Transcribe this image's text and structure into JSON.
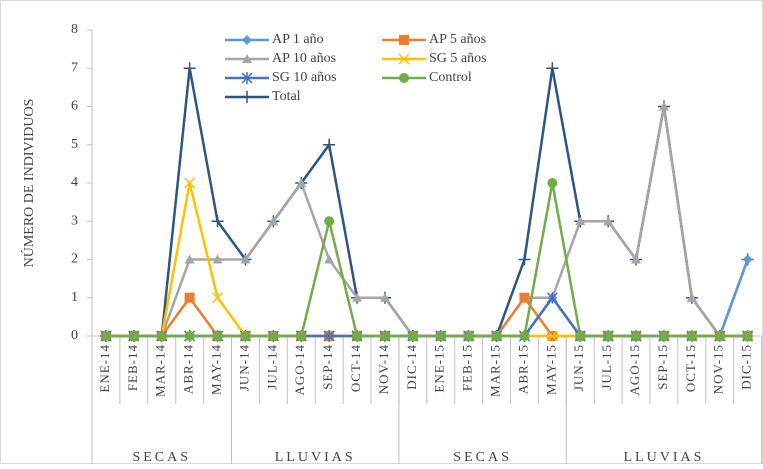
{
  "chart_data": {
    "type": "line",
    "y_label": "NÚMERO DE INDIVIDUOS",
    "categories": [
      "ENE-14",
      "FEB-14",
      "MAR-14",
      "ABR-14",
      "MAY-14",
      "JUN-14",
      "JUL-14",
      "AGO-14",
      "SEP-14",
      "OCT-14",
      "NOV-14",
      "DIC-14",
      "ENE-15",
      "FEB-15",
      "MAR-15",
      "ABR-15",
      "MAY-15",
      "JUN-15",
      "JUL-15",
      "AGO-15",
      "SEP-15",
      "OCT-15",
      "NOV-15",
      "DIC-15"
    ],
    "groups": [
      {
        "label": "SECAS",
        "count": 5
      },
      {
        "label": "LLUVIAS",
        "count": 6
      },
      {
        "label": "SECAS",
        "count": 6
      },
      {
        "label": "LLUVIAS",
        "count": 7
      }
    ],
    "series": [
      {
        "name": "Total",
        "color": "#2a5585",
        "marker": "plus",
        "values": [
          0,
          0,
          0,
          7,
          3,
          2,
          3,
          4,
          5,
          1,
          1,
          0,
          0,
          0,
          0,
          2,
          7,
          3,
          3,
          2,
          6,
          1,
          0,
          2
        ]
      },
      {
        "name": "AP 10 años",
        "color": "#a5a5a5",
        "marker": "triangle",
        "values": [
          0,
          0,
          0,
          2,
          2,
          2,
          3,
          4,
          2,
          1,
          1,
          0,
          0,
          0,
          0,
          1,
          1,
          3,
          3,
          2,
          6,
          1,
          0,
          0
        ]
      },
      {
        "name": "AP 1 año",
        "color": "#5b9bd5",
        "marker": "diamond",
        "values": [
          0,
          0,
          0,
          0,
          0,
          0,
          0,
          0,
          0,
          0,
          0,
          0,
          0,
          0,
          0,
          0,
          1,
          0,
          0,
          0,
          0,
          0,
          0,
          2
        ]
      },
      {
        "name": "AP 5 años",
        "color": "#ed7d31",
        "marker": "square",
        "values": [
          0,
          0,
          0,
          1,
          0,
          0,
          0,
          0,
          0,
          0,
          0,
          0,
          0,
          0,
          0,
          1,
          0,
          0,
          0,
          0,
          0,
          0,
          0,
          0
        ]
      },
      {
        "name": "SG 5 años",
        "color": "#ffc000",
        "marker": "x",
        "values": [
          0,
          0,
          0,
          4,
          1,
          0,
          0,
          0,
          0,
          0,
          0,
          0,
          0,
          0,
          0,
          0,
          0,
          0,
          0,
          0,
          0,
          0,
          0,
          0
        ]
      },
      {
        "name": "SG 10 años",
        "color": "#4472c4",
        "marker": "star",
        "values": [
          0,
          0,
          0,
          0,
          0,
          0,
          0,
          0,
          0,
          0,
          0,
          0,
          0,
          0,
          0,
          0,
          1,
          0,
          0,
          0,
          0,
          0,
          0,
          0
        ]
      },
      {
        "name": "Control",
        "color": "#70ad47",
        "marker": "circle",
        "values": [
          0,
          0,
          0,
          0,
          0,
          0,
          0,
          0,
          3,
          0,
          0,
          0,
          0,
          0,
          0,
          0,
          4,
          0,
          0,
          0,
          0,
          0,
          0,
          0
        ]
      }
    ],
    "legend_order": [
      2,
      3,
      1,
      4,
      5,
      6,
      0
    ],
    "ylim": [
      0,
      8
    ],
    "yticks": [
      0,
      1,
      2,
      3,
      4,
      5,
      6,
      7,
      8
    ],
    "grid": false,
    "legend": "top"
  }
}
